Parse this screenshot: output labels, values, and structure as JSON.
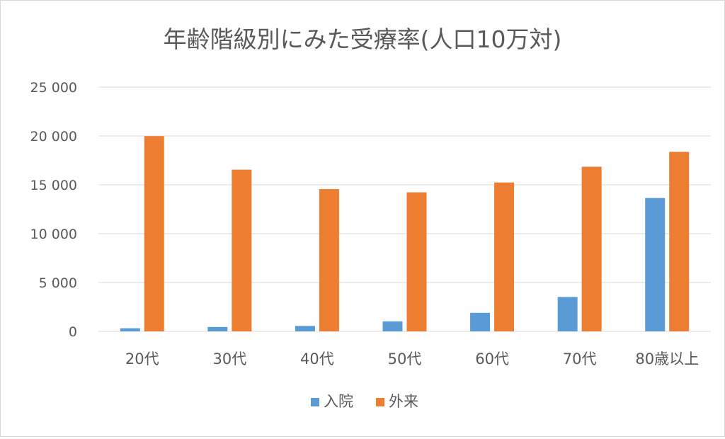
{
  "chart_data": {
    "type": "bar",
    "title": "年齢階級別にみた受療率(人口10万対)",
    "xlabel": "",
    "ylabel": "",
    "categories": [
      "20代",
      "30代",
      "40代",
      "50代",
      "60代",
      "70代",
      "80歳以上"
    ],
    "series": [
      {
        "name": "入院",
        "values": [
          320,
          450,
          560,
          1020,
          1900,
          3520,
          13650
        ]
      },
      {
        "name": "外来",
        "values": [
          19980,
          16550,
          14560,
          14230,
          15240,
          16850,
          18370
        ]
      }
    ],
    "ylim": [
      0,
      25000
    ],
    "yticks": [
      0,
      5000,
      10000,
      15000,
      20000,
      25000
    ],
    "ytick_labels": [
      "0",
      "5 000",
      "10 000",
      "15 000",
      "20 000",
      "25 000"
    ],
    "grid": true,
    "legend_position": "bottom",
    "colors": {
      "入院": "#5b9bd5",
      "外来": "#ed7d31",
      "grid": "#d9d9d9",
      "text": "#595959"
    }
  }
}
